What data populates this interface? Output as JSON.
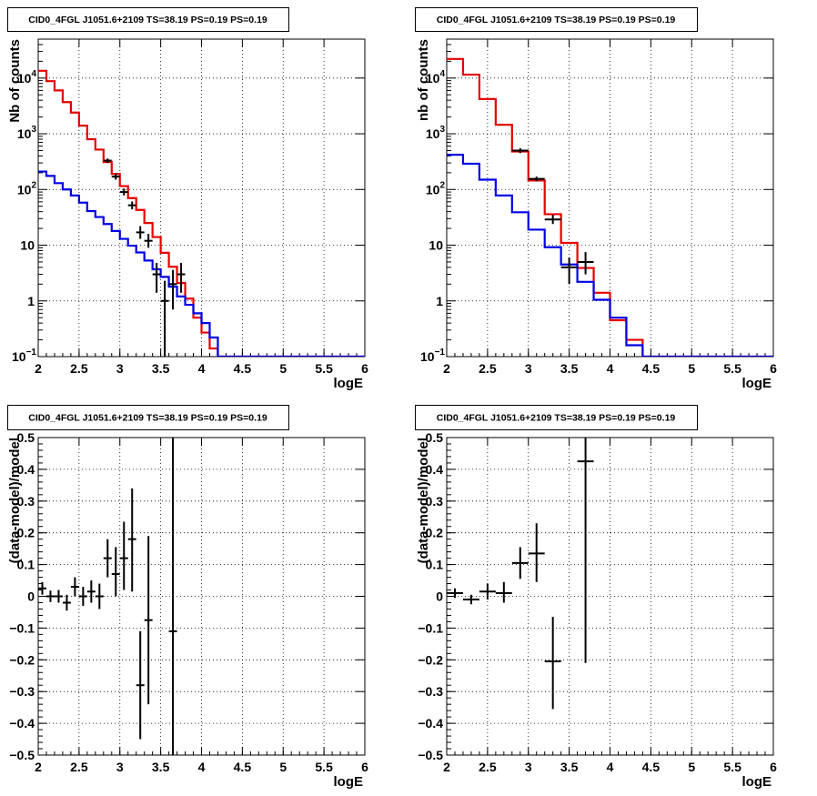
{
  "colors": {
    "data": "#000000",
    "total_model": "#e60000",
    "source_model": "#0000e6",
    "grid": "#000000",
    "frame": "#000000"
  },
  "chart_data": [
    {
      "type": "line",
      "title": "CID0_4FGL J1051.6+2109 TS=38.19 PS=0.19 PS=0.19",
      "xlabel": "logE",
      "ylabel": "Nb of counts",
      "xlim": [
        2,
        6
      ],
      "ylim": [
        0.1,
        50000
      ],
      "yscale": "log",
      "grid": true,
      "xticks": [
        "2",
        "2.5",
        "3",
        "3.5",
        "4",
        "4.5",
        "5",
        "5.5",
        "6"
      ],
      "yticks": [
        {
          "v": 0.1,
          "label": "10",
          "sup": "−1"
        },
        {
          "v": 1,
          "label": "1",
          "sup": ""
        },
        {
          "v": 10,
          "label": "10",
          "sup": ""
        },
        {
          "v": 100,
          "label": "10",
          "sup": "2"
        },
        {
          "v": 1000,
          "label": "10",
          "sup": "3"
        },
        {
          "v": 10000,
          "label": "10",
          "sup": "4"
        }
      ],
      "series": [
        {
          "role": "total_model",
          "kind": "step",
          "edges": [
            2.0,
            2.1,
            2.2,
            2.3,
            2.4,
            2.5,
            2.6,
            2.7,
            2.8,
            2.9,
            3.0,
            3.1,
            3.2,
            3.3,
            3.4,
            3.5,
            3.6,
            3.7,
            3.8,
            3.9,
            4.0,
            4.1,
            4.2,
            4.3,
            4.4,
            4.5,
            4.6,
            4.7,
            4.8,
            4.9,
            5.0,
            5.1,
            5.2,
            5.3,
            5.4,
            5.5,
            5.6,
            5.7,
            5.8,
            5.9,
            6.0
          ],
          "values": [
            13500,
            8800,
            6000,
            3700,
            2400,
            1400,
            800,
            520,
            310,
            190,
            115,
            70,
            43,
            25,
            14,
            7.3,
            4.1,
            2.1,
            1.1,
            0.5,
            0.27,
            0.14,
            0.1,
            0.1,
            0.1,
            0.1,
            0.1,
            0.1,
            0.1,
            0.1,
            0.1,
            0.1,
            0.1,
            0.1,
            0.1,
            0.1,
            0.1,
            0.1,
            0.1,
            0.1
          ]
        },
        {
          "role": "source_model",
          "kind": "step",
          "edges": [
            2.0,
            2.1,
            2.2,
            2.3,
            2.4,
            2.5,
            2.6,
            2.7,
            2.8,
            2.9,
            3.0,
            3.1,
            3.2,
            3.3,
            3.4,
            3.5,
            3.6,
            3.7,
            3.8,
            3.9,
            4.0,
            4.1,
            4.2,
            4.3,
            4.4,
            4.5,
            4.6,
            4.7,
            4.8,
            4.9,
            5.0,
            5.1,
            5.2,
            5.3,
            5.4,
            5.5,
            5.6,
            5.7,
            5.8,
            5.9,
            6.0
          ],
          "values": [
            210,
            175,
            130,
            100,
            78,
            58,
            41,
            32,
            24,
            18,
            13,
            9.8,
            7.4,
            5.3,
            3.7,
            2.7,
            1.8,
            1.2,
            0.85,
            0.6,
            0.4,
            0.22,
            0.1,
            0.1,
            0.1,
            0.1,
            0.1,
            0.1,
            0.1,
            0.1,
            0.1,
            0.1,
            0.1,
            0.1,
            0.1,
            0.1,
            0.1,
            0.1,
            0.1,
            0.1
          ]
        },
        {
          "role": "data",
          "kind": "errorbar",
          "points": [
            {
              "x": 2.85,
              "y": 330,
              "xerr": 0.05,
              "ylo": 300,
              "yhi": 360
            },
            {
              "x": 2.95,
              "y": 170,
              "xerr": 0.05,
              "ylo": 150,
              "yhi": 195
            },
            {
              "x": 3.05,
              "y": 90,
              "xerr": 0.05,
              "ylo": 78,
              "yhi": 104
            },
            {
              "x": 3.15,
              "y": 52,
              "xerr": 0.05,
              "ylo": 44,
              "yhi": 61
            },
            {
              "x": 3.25,
              "y": 17,
              "xerr": 0.05,
              "ylo": 13,
              "yhi": 22
            },
            {
              "x": 3.35,
              "y": 12,
              "xerr": 0.05,
              "ylo": 9,
              "yhi": 16
            },
            {
              "x": 3.45,
              "y": 3,
              "xerr": 0.05,
              "ylo": 1.4,
              "yhi": 4.8
            },
            {
              "x": 3.55,
              "y": 1,
              "xerr": 0.05,
              "ylo": 0.1,
              "yhi": 2.3
            },
            {
              "x": 3.65,
              "y": 2,
              "xerr": 0.05,
              "ylo": 0.7,
              "yhi": 3.6
            },
            {
              "x": 3.75,
              "y": 3,
              "xerr": 0.05,
              "ylo": 1.4,
              "yhi": 4.8
            }
          ]
        }
      ]
    },
    {
      "type": "line",
      "title": "CID0_4FGL J1051.6+2109 TS=38.19 PS=0.19 PS=0.19",
      "xlabel": "logE",
      "ylabel": "nb of counts",
      "xlim": [
        2,
        6
      ],
      "ylim": [
        0.1,
        50000
      ],
      "yscale": "log",
      "grid": true,
      "xticks": [
        "2",
        "2.5",
        "3",
        "3.5",
        "4",
        "4.5",
        "5",
        "5.5",
        "6"
      ],
      "yticks": [
        {
          "v": 0.1,
          "label": "10",
          "sup": "−1"
        },
        {
          "v": 1,
          "label": "1",
          "sup": ""
        },
        {
          "v": 10,
          "label": "10",
          "sup": ""
        },
        {
          "v": 100,
          "label": "10",
          "sup": "2"
        },
        {
          "v": 1000,
          "label": "10",
          "sup": "3"
        },
        {
          "v": 10000,
          "label": "10",
          "sup": "4"
        }
      ],
      "series": [
        {
          "role": "total_model",
          "kind": "step",
          "edges": [
            2.0,
            2.2,
            2.4,
            2.6,
            2.8,
            3.0,
            3.2,
            3.4,
            3.6,
            3.8,
            4.0,
            4.2,
            4.4,
            4.6,
            4.8,
            5.0,
            5.2,
            5.4,
            5.6,
            5.8,
            6.0
          ],
          "values": [
            22000,
            11500,
            4200,
            1450,
            480,
            145,
            36,
            11,
            3.9,
            1.4,
            0.45,
            0.2,
            0.1,
            0.1,
            0.1,
            0.1,
            0.1,
            0.1,
            0.1,
            0.1
          ]
        },
        {
          "role": "source_model",
          "kind": "step",
          "edges": [
            2.0,
            2.2,
            2.4,
            2.6,
            2.8,
            3.0,
            3.2,
            3.4,
            3.6,
            3.8,
            4.0,
            4.2,
            4.4,
            4.6,
            4.8,
            5.0,
            5.2,
            5.4,
            5.6,
            5.8,
            6.0
          ],
          "values": [
            420,
            290,
            150,
            78,
            39,
            19,
            9.2,
            4.5,
            2.2,
            1.05,
            0.5,
            0.16,
            0.1,
            0.1,
            0.1,
            0.1,
            0.1,
            0.1,
            0.1,
            0.1
          ]
        },
        {
          "role": "data",
          "kind": "errorbar",
          "points": [
            {
              "x": 2.9,
              "y": 500,
              "xerr": 0.1,
              "ylo": 450,
              "yhi": 550
            },
            {
              "x": 3.1,
              "y": 155,
              "xerr": 0.1,
              "ylo": 140,
              "yhi": 170
            },
            {
              "x": 3.3,
              "y": 29,
              "xerr": 0.1,
              "ylo": 24,
              "yhi": 35
            },
            {
              "x": 3.5,
              "y": 4,
              "xerr": 0.1,
              "ylo": 2,
              "yhi": 6
            },
            {
              "x": 3.7,
              "y": 5,
              "xerr": 0.1,
              "ylo": 3,
              "yhi": 7.5
            }
          ]
        }
      ]
    },
    {
      "type": "scatter",
      "title": "CID0_4FGL J1051.6+2109 TS=38.19 PS=0.19 PS=0.19",
      "xlabel": "logE",
      "ylabel": "(data-model)/model",
      "xlim": [
        2,
        6
      ],
      "ylim": [
        -0.5,
        0.5
      ],
      "yscale": "linear",
      "grid": true,
      "xticks": [
        "2",
        "2.5",
        "3",
        "3.5",
        "4",
        "4.5",
        "5",
        "5.5",
        "6"
      ],
      "yticks": [
        {
          "v": -0.5,
          "label": "−0.5",
          "sup": ""
        },
        {
          "v": -0.4,
          "label": "−0.4",
          "sup": ""
        },
        {
          "v": -0.3,
          "label": "−0.3",
          "sup": ""
        },
        {
          "v": -0.2,
          "label": "−0.2",
          "sup": ""
        },
        {
          "v": -0.1,
          "label": "−0.1",
          "sup": ""
        },
        {
          "v": 0,
          "label": "0",
          "sup": ""
        },
        {
          "v": 0.1,
          "label": "0.1",
          "sup": ""
        },
        {
          "v": 0.2,
          "label": "0.2",
          "sup": ""
        },
        {
          "v": 0.3,
          "label": "0.3",
          "sup": ""
        },
        {
          "v": 0.4,
          "label": "0.4",
          "sup": ""
        },
        {
          "v": 0.5,
          "label": "0.5",
          "sup": ""
        }
      ],
      "series": [
        {
          "role": "data",
          "kind": "errorbar",
          "points": [
            {
              "x": 2.05,
              "y": 0.025,
              "xerr": 0.05,
              "ylo": 0.005,
              "yhi": 0.045
            },
            {
              "x": 2.15,
              "y": 0.0,
              "xerr": 0.05,
              "ylo": -0.018,
              "yhi": 0.018
            },
            {
              "x": 2.25,
              "y": 0.0,
              "xerr": 0.05,
              "ylo": -0.02,
              "yhi": 0.02
            },
            {
              "x": 2.35,
              "y": -0.02,
              "xerr": 0.05,
              "ylo": -0.045,
              "yhi": 0.005
            },
            {
              "x": 2.45,
              "y": 0.03,
              "xerr": 0.05,
              "ylo": 0.0,
              "yhi": 0.06
            },
            {
              "x": 2.55,
              "y": 0.0,
              "xerr": 0.05,
              "ylo": -0.03,
              "yhi": 0.03
            },
            {
              "x": 2.65,
              "y": 0.015,
              "xerr": 0.05,
              "ylo": -0.02,
              "yhi": 0.05
            },
            {
              "x": 2.75,
              "y": 0.0,
              "xerr": 0.05,
              "ylo": -0.04,
              "yhi": 0.04
            },
            {
              "x": 2.85,
              "y": 0.12,
              "xerr": 0.05,
              "ylo": 0.06,
              "yhi": 0.18
            },
            {
              "x": 2.95,
              "y": 0.07,
              "xerr": 0.05,
              "ylo": 0.0,
              "yhi": 0.155
            },
            {
              "x": 3.05,
              "y": 0.12,
              "xerr": 0.05,
              "ylo": 0.02,
              "yhi": 0.235
            },
            {
              "x": 3.15,
              "y": 0.18,
              "xerr": 0.05,
              "ylo": 0.015,
              "yhi": 0.34
            },
            {
              "x": 3.25,
              "y": -0.28,
              "xerr": 0.05,
              "ylo": -0.45,
              "yhi": -0.11
            },
            {
              "x": 3.35,
              "y": -0.075,
              "xerr": 0.05,
              "ylo": -0.34,
              "yhi": 0.19
            },
            {
              "x": 3.65,
              "y": -0.11,
              "xerr": 0.05,
              "ylo": -0.5,
              "yhi": 0.5
            }
          ]
        }
      ]
    },
    {
      "type": "scatter",
      "title": "CID0_4FGL J1051.6+2109 TS=38.19 PS=0.19 PS=0.19",
      "xlabel": "logE",
      "ylabel": "(data-model)/model",
      "xlim": [
        2,
        6
      ],
      "ylim": [
        -0.5,
        0.5
      ],
      "yscale": "linear",
      "grid": true,
      "xticks": [
        "2",
        "2.5",
        "3",
        "3.5",
        "4",
        "4.5",
        "5",
        "5.5",
        "6"
      ],
      "yticks": [
        {
          "v": -0.5,
          "label": "−0.5",
          "sup": ""
        },
        {
          "v": -0.4,
          "label": "−0.4",
          "sup": ""
        },
        {
          "v": -0.3,
          "label": "−0.3",
          "sup": ""
        },
        {
          "v": -0.2,
          "label": "−0.2",
          "sup": ""
        },
        {
          "v": -0.1,
          "label": "−0.1",
          "sup": ""
        },
        {
          "v": 0,
          "label": "0",
          "sup": ""
        },
        {
          "v": 0.1,
          "label": "0.1",
          "sup": ""
        },
        {
          "v": 0.2,
          "label": "0.2",
          "sup": ""
        },
        {
          "v": 0.3,
          "label": "0.3",
          "sup": ""
        },
        {
          "v": 0.4,
          "label": "0.4",
          "sup": ""
        },
        {
          "v": 0.5,
          "label": "0.5",
          "sup": ""
        }
      ],
      "series": [
        {
          "role": "data",
          "kind": "errorbar",
          "points": [
            {
              "x": 2.1,
              "y": 0.01,
              "xerr": 0.1,
              "ylo": -0.005,
              "yhi": 0.025
            },
            {
              "x": 2.3,
              "y": -0.01,
              "xerr": 0.1,
              "ylo": -0.025,
              "yhi": 0.005
            },
            {
              "x": 2.5,
              "y": 0.015,
              "xerr": 0.1,
              "ylo": -0.01,
              "yhi": 0.04
            },
            {
              "x": 2.7,
              "y": 0.01,
              "xerr": 0.1,
              "ylo": -0.02,
              "yhi": 0.045
            },
            {
              "x": 2.9,
              "y": 0.105,
              "xerr": 0.1,
              "ylo": 0.055,
              "yhi": 0.155
            },
            {
              "x": 3.1,
              "y": 0.135,
              "xerr": 0.1,
              "ylo": 0.045,
              "yhi": 0.23
            },
            {
              "x": 3.3,
              "y": -0.205,
              "xerr": 0.1,
              "ylo": -0.355,
              "yhi": -0.065
            },
            {
              "x": 3.7,
              "y": 0.425,
              "xerr": 0.1,
              "ylo": -0.21,
              "yhi": 0.5
            }
          ]
        }
      ]
    }
  ]
}
